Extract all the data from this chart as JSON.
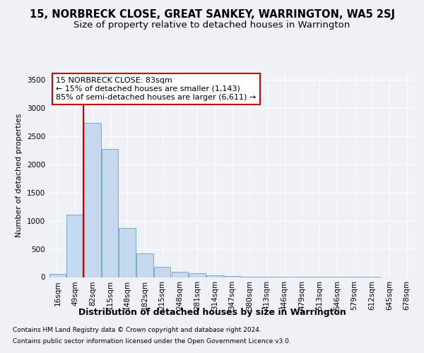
{
  "title": "15, NORBRECK CLOSE, GREAT SANKEY, WARRINGTON, WA5 2SJ",
  "subtitle": "Size of property relative to detached houses in Warrington",
  "xlabel": "Distribution of detached houses by size in Warrington",
  "ylabel": "Number of detached properties",
  "categories": [
    "16sqm",
    "49sqm",
    "82sqm",
    "115sqm",
    "148sqm",
    "182sqm",
    "215sqm",
    "248sqm",
    "281sqm",
    "314sqm",
    "347sqm",
    "380sqm",
    "413sqm",
    "446sqm",
    "479sqm",
    "513sqm",
    "546sqm",
    "579sqm",
    "612sqm",
    "645sqm",
    "678sqm"
  ],
  "values": [
    55,
    1110,
    2730,
    2270,
    870,
    415,
    185,
    100,
    65,
    30,
    18,
    12,
    8,
    4,
    3,
    2,
    1,
    1,
    1,
    0,
    0
  ],
  "bar_color": "#c5d8ee",
  "bar_edge_color": "#7aaacf",
  "vline_color": "#cc0000",
  "annotation_text": "15 NORBRECK CLOSE: 83sqm\n← 15% of detached houses are smaller (1,143)\n85% of semi-detached houses are larger (6,611) →",
  "annotation_box_color": "#ffffff",
  "annotation_box_edge": "#cc0000",
  "background_color": "#eef2f7",
  "plot_bg_color": "#eef2f7",
  "grid_color": "#ffffff",
  "footer1": "Contains HM Land Registry data © Crown copyright and database right 2024.",
  "footer2": "Contains public sector information licensed under the Open Government Licence v3.0.",
  "ylim": [
    0,
    3600
  ],
  "yticks": [
    0,
    500,
    1000,
    1500,
    2000,
    2500,
    3000,
    3500
  ],
  "title_fontsize": 10.5,
  "subtitle_fontsize": 9.5,
  "xlabel_fontsize": 9,
  "ylabel_fontsize": 8,
  "tick_fontsize": 7.5,
  "footer_fontsize": 6.5,
  "annot_fontsize": 8
}
